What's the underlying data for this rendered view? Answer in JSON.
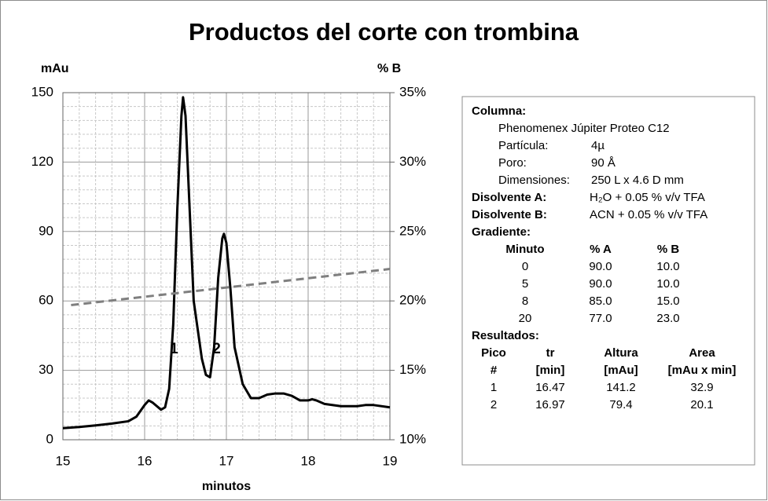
{
  "chart_data": {
    "type": "line",
    "title": "Productos del corte con trombina",
    "y_label": "mAu",
    "y2_label": "% B",
    "x_label": "minutos",
    "xlim": [
      15,
      19
    ],
    "xticks": [
      15,
      16,
      17,
      18,
      19
    ],
    "ylim": [
      0,
      150
    ],
    "yticks": [
      0,
      30,
      60,
      90,
      120,
      150
    ],
    "y2lim": [
      10,
      35
    ],
    "y2ticks": [
      {
        "value": 10,
        "label": "10%"
      },
      {
        "value": 15,
        "label": "15%"
      },
      {
        "value": 20,
        "label": "20%"
      },
      {
        "value": 25,
        "label": "25%"
      },
      {
        "value": 30,
        "label": "30%"
      },
      {
        "value": 35,
        "label": "35%"
      }
    ],
    "grid": true,
    "series": [
      {
        "color": "#000000",
        "x": [
          15.0,
          15.2,
          15.4,
          15.6,
          15.8,
          15.9,
          16.0,
          16.05,
          16.1,
          16.2,
          16.25,
          16.3,
          16.35,
          16.4,
          16.45,
          16.47,
          16.5,
          16.55,
          16.6,
          16.7,
          16.75,
          16.8,
          16.85,
          16.9,
          16.95,
          16.97,
          17.0,
          17.05,
          17.1,
          17.2,
          17.3,
          17.4,
          17.5,
          17.6,
          17.7,
          17.8,
          17.9,
          18.0,
          18.05,
          18.1,
          18.2,
          18.4,
          18.6,
          18.7,
          18.8,
          19.0
        ],
        "values": [
          5,
          5.5,
          6.2,
          7,
          8,
          10,
          15,
          17,
          16,
          13,
          14,
          22,
          50,
          100,
          140,
          148,
          140,
          100,
          60,
          35,
          28,
          27,
          40,
          70,
          87,
          89,
          85,
          65,
          40,
          24,
          18,
          18,
          19.5,
          20,
          20,
          19,
          17,
          17,
          17.5,
          17,
          15.5,
          14.5,
          14.5,
          15,
          15,
          14
        ]
      },
      {
        "color": "#7f7f7f",
        "dash": true,
        "axis": "y2",
        "x": [
          15.1,
          19.0
        ],
        "values": [
          19.7,
          22.3
        ]
      }
    ],
    "annotations": [
      {
        "text": "1",
        "x": 16.36,
        "y": 39
      },
      {
        "text": "2",
        "x": 16.88,
        "y": 39
      }
    ]
  },
  "info": {
    "column": {
      "label": "Columna:",
      "name": "Phenomenex Júpiter Proteo C12",
      "specs": [
        [
          "Partícula:",
          "4µ"
        ],
        [
          "Poro:",
          "90 Å"
        ],
        [
          "Dimensiones:",
          "250 L x 4.6 D mm"
        ]
      ]
    },
    "solvents": [
      [
        "Disolvente A:",
        "H₂O + 0.05 % v/v TFA"
      ],
      [
        "Disolvente B:",
        "ACN + 0.05 % v/v TFA"
      ]
    ],
    "gradient": {
      "label": "Gradiente:",
      "header": [
        "Minuto",
        "% A",
        "% B"
      ],
      "rows": [
        [
          "0",
          "90.0",
          "10.0"
        ],
        [
          "5",
          "90.0",
          "10.0"
        ],
        [
          "8",
          "85.0",
          "15.0"
        ],
        [
          "20",
          "77.0",
          "23.0"
        ]
      ]
    },
    "results": {
      "label": "Resultados:",
      "header": [
        [
          "Pico",
          "tr",
          "Altura",
          "Area"
        ],
        [
          "#",
          "[min]",
          "[mAu]",
          "[mAu x min]"
        ]
      ],
      "rows": [
        [
          "1",
          "16.47",
          "141.2",
          "32.9"
        ],
        [
          "2",
          "16.97",
          "79.4",
          "20.1"
        ]
      ]
    }
  }
}
